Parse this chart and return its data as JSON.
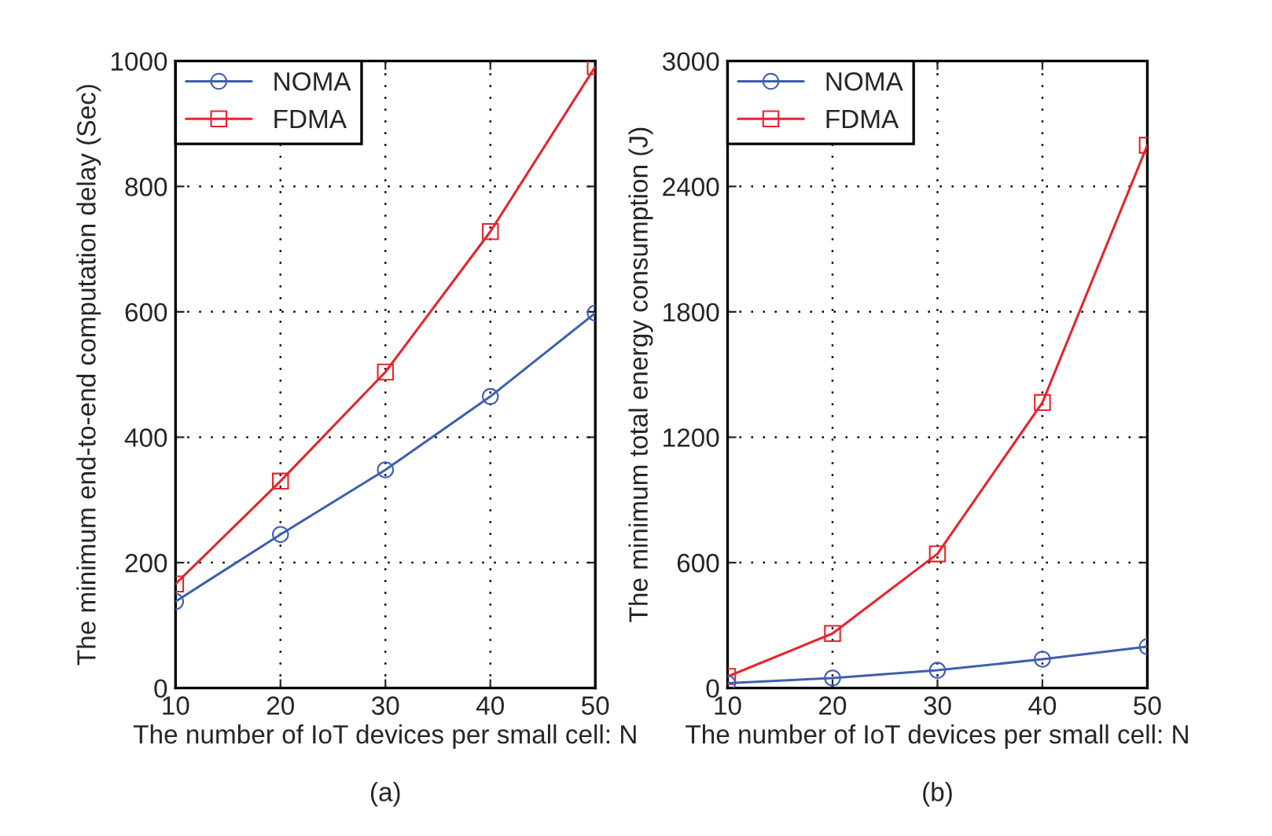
{
  "chart_data": [
    {
      "type": "line",
      "x": [
        10,
        20,
        30,
        40,
        50
      ],
      "xlabel": "The number of IoT devices per small cell: N",
      "ylabel": "The minimum end-to-end computation delay (Sec)",
      "annotations": [
        "(a)"
      ],
      "series": [
        {
          "name": "NOMA",
          "color": "#3f5fb0",
          "marker": "circle",
          "values": [
            138,
            245,
            348,
            465,
            598
          ]
        },
        {
          "name": "FDMA",
          "color": "#e8232b",
          "marker": "square",
          "values": [
            166,
            330,
            504,
            728,
            991
          ]
        }
      ],
      "xlim": [
        10,
        50
      ],
      "xticks": [
        10,
        20,
        30,
        40,
        50
      ],
      "ylim": [
        0,
        1000
      ],
      "yticks": [
        0,
        200,
        400,
        600,
        800,
        1000
      ],
      "grid": true,
      "legend": "top left",
      "line_style": "solid"
    },
    {
      "type": "line",
      "x": [
        10,
        20,
        30,
        40,
        50
      ],
      "xlabel": "The number of IoT devices per small cell: N",
      "ylabel": "The minimum total energy consumption (J)",
      "annotations": [
        "(b)"
      ],
      "series": [
        {
          "name": "NOMA",
          "color": "#3f5fb0",
          "marker": "circle",
          "values": [
            23,
            48,
            85,
            138,
            198
          ]
        },
        {
          "name": "FDMA",
          "color": "#e8232b",
          "marker": "square",
          "values": [
            55,
            261,
            642,
            1366,
            2597
          ]
        }
      ],
      "xlim": [
        10,
        50
      ],
      "xticks": [
        10,
        20,
        30,
        40,
        50
      ],
      "ylim": [
        0,
        3000
      ],
      "yticks": [
        0,
        600,
        1200,
        1800,
        2400,
        3000
      ],
      "grid": true,
      "legend": "top left",
      "line_style": "solid"
    }
  ]
}
